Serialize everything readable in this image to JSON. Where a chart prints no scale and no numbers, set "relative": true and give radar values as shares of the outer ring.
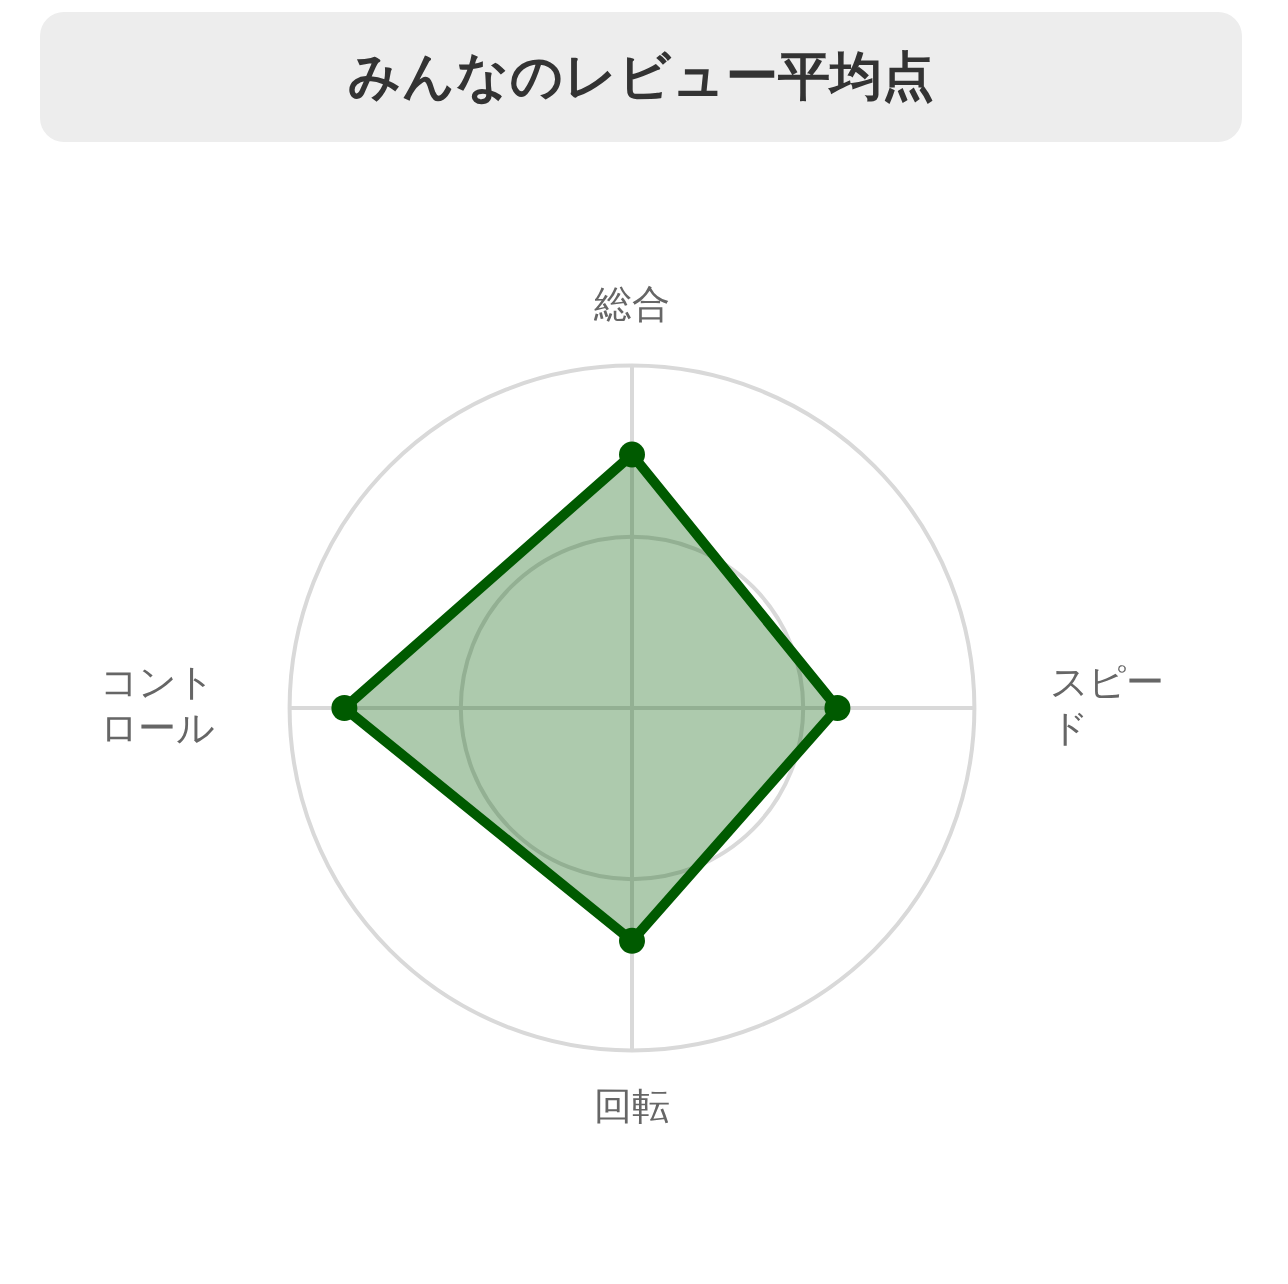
{
  "chart_data": {
    "type": "radar",
    "title": "みんなのレビュー平均点",
    "categories": [
      "総合",
      "スピード",
      "回転",
      "コントロール"
    ],
    "series": [
      {
        "color": "#005a00",
        "values": [
          0.74,
          0.6,
          0.68,
          0.84
        ]
      }
    ],
    "relative": true,
    "grid": true,
    "legend": false,
    "marker": "circle"
  }
}
